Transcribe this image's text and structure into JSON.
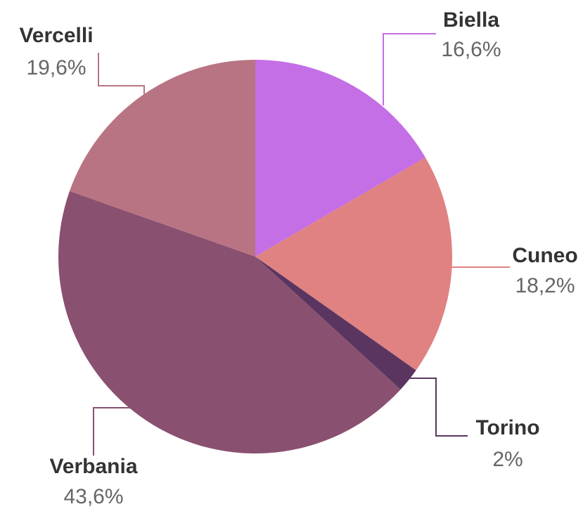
{
  "chart_data": {
    "type": "pie",
    "categories": [
      "Biella",
      "Cuneo",
      "Torino",
      "Verbania",
      "Vercelli"
    ],
    "values": [
      16.6,
      18.2,
      2,
      43.6,
      19.6
    ],
    "value_labels": [
      "16,6%",
      "18,2%",
      "2%",
      "43,6%",
      "19,6%"
    ],
    "colors": [
      "#c46fe6",
      "#e08282",
      "#5a3560",
      "#8a5070",
      "#b87482"
    ]
  }
}
